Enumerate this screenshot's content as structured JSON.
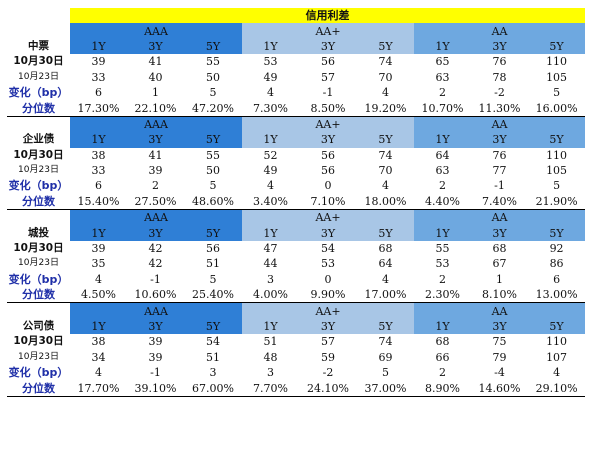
{
  "title": "信用利差",
  "row_labels": [
    "10月30日",
    "10月23日",
    "变化（bp）",
    "分位数"
  ],
  "sections": [
    {
      "name": "中票",
      "groups": [
        {
          "rating": "AAA",
          "tenors": [
            "1Y",
            "3Y",
            "5Y"
          ],
          "rows": [
            [
              "39",
              "41",
              "55"
            ],
            [
              "33",
              "40",
              "50"
            ],
            [
              "6",
              "1",
              "5"
            ],
            [
              "17.30%",
              "22.10%",
              "47.20%"
            ]
          ]
        },
        {
          "rating": "AA+",
          "tenors": [
            "1Y",
            "3Y",
            "5Y"
          ],
          "rows": [
            [
              "53",
              "56",
              "74"
            ],
            [
              "49",
              "57",
              "70"
            ],
            [
              "4",
              "-1",
              "4"
            ],
            [
              "7.30%",
              "8.50%",
              "19.20%"
            ]
          ]
        },
        {
          "rating": "AA",
          "tenors": [
            "1Y",
            "3Y",
            "5Y"
          ],
          "rows": [
            [
              "65",
              "76",
              "110"
            ],
            [
              "63",
              "78",
              "105"
            ],
            [
              "2",
              "-2",
              "5"
            ],
            [
              "10.70%",
              "11.30%",
              "16.00%"
            ]
          ]
        }
      ]
    },
    {
      "name": "企业债",
      "groups": [
        {
          "rating": "AAA",
          "tenors": [
            "1Y",
            "3Y",
            "5Y"
          ],
          "rows": [
            [
              "38",
              "41",
              "55"
            ],
            [
              "33",
              "39",
              "50"
            ],
            [
              "6",
              "2",
              "5"
            ],
            [
              "15.40%",
              "27.50%",
              "48.60%"
            ]
          ]
        },
        {
          "rating": "AA+",
          "tenors": [
            "1Y",
            "3Y",
            "5Y"
          ],
          "rows": [
            [
              "52",
              "56",
              "74"
            ],
            [
              "49",
              "56",
              "70"
            ],
            [
              "4",
              "0",
              "4"
            ],
            [
              "3.40%",
              "7.10%",
              "18.00%"
            ]
          ]
        },
        {
          "rating": "AA",
          "tenors": [
            "1Y",
            "3Y",
            "5Y"
          ],
          "rows": [
            [
              "64",
              "76",
              "110"
            ],
            [
              "63",
              "77",
              "105"
            ],
            [
              "2",
              "-1",
              "5"
            ],
            [
              "4.40%",
              "7.40%",
              "21.90%"
            ]
          ]
        }
      ]
    },
    {
      "name": "城投",
      "groups": [
        {
          "rating": "AAA",
          "tenors": [
            "1Y",
            "3Y",
            "5Y"
          ],
          "rows": [
            [
              "39",
              "42",
              "56"
            ],
            [
              "35",
              "42",
              "51"
            ],
            [
              "4",
              "-1",
              "5"
            ],
            [
              "4.50%",
              "10.60%",
              "25.40%"
            ]
          ]
        },
        {
          "rating": "AA+",
          "tenors": [
            "1Y",
            "3Y",
            "5Y"
          ],
          "rows": [
            [
              "47",
              "54",
              "68"
            ],
            [
              "44",
              "53",
              "64"
            ],
            [
              "3",
              "0",
              "4"
            ],
            [
              "4.00%",
              "9.90%",
              "17.00%"
            ]
          ]
        },
        {
          "rating": "AA",
          "tenors": [
            "1Y",
            "3Y",
            "5Y"
          ],
          "rows": [
            [
              "55",
              "68",
              "92"
            ],
            [
              "53",
              "67",
              "86"
            ],
            [
              "2",
              "1",
              "6"
            ],
            [
              "2.30%",
              "8.10%",
              "13.00%"
            ]
          ]
        }
      ]
    },
    {
      "name": "公司债",
      "groups": [
        {
          "rating": "AAA",
          "tenors": [
            "1Y",
            "3Y",
            "5Y"
          ],
          "rows": [
            [
              "38",
              "39",
              "54"
            ],
            [
              "34",
              "39",
              "51"
            ],
            [
              "4",
              "-1",
              "3"
            ],
            [
              "17.70%",
              "39.10%",
              "67.00%"
            ]
          ]
        },
        {
          "rating": "AA+",
          "tenors": [
            "1Y",
            "3Y",
            "5Y"
          ],
          "rows": [
            [
              "51",
              "57",
              "74"
            ],
            [
              "48",
              "59",
              "69"
            ],
            [
              "3",
              "-2",
              "5"
            ],
            [
              "7.70%",
              "24.10%",
              "37.00%"
            ]
          ]
        },
        {
          "rating": "AA",
          "tenors": [
            "1Y",
            "3Y",
            "5Y"
          ],
          "rows": [
            [
              "68",
              "75",
              "110"
            ],
            [
              "66",
              "79",
              "107"
            ],
            [
              "2",
              "-4",
              "4"
            ],
            [
              "8.90%",
              "14.60%",
              "29.10%"
            ]
          ]
        }
      ]
    }
  ],
  "colors": {
    "title_bg": "#ffff00",
    "aaa": "#2f7fd6",
    "aa_plus": "#a8c6e6",
    "aa": "#6ea8e0",
    "label_blue": "#1f2fa8"
  }
}
